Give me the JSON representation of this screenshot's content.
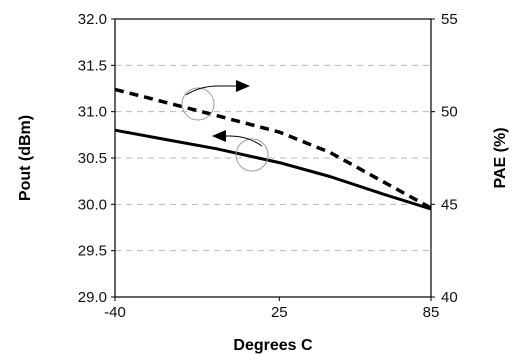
{
  "chart_data": {
    "type": "line",
    "xlabel": "Degrees C",
    "ylabel": "Pout (dBm)",
    "y2label": "PAE (%)",
    "x_ticks": [
      -40,
      25,
      85
    ],
    "x_tick_labels": [
      "-40",
      "25",
      "85"
    ],
    "xlim": [
      -40,
      85
    ],
    "ylim": [
      29.0,
      32.0
    ],
    "y_ticks": [
      29.0,
      29.5,
      30.0,
      30.5,
      31.0,
      31.5,
      32.0
    ],
    "y_tick_labels": [
      "29.0",
      "29.5",
      "30.0",
      "30.5",
      "31.0",
      "31.5",
      "32.0"
    ],
    "y2lim": [
      40,
      55
    ],
    "y2_ticks": [
      40,
      45,
      50,
      55
    ],
    "y2_tick_labels": [
      "40",
      "45",
      "50",
      "55"
    ],
    "grid": true,
    "series": [
      {
        "axis": "left",
        "style": "solid",
        "color": "#000000",
        "x": [
          -40,
          -20,
          0,
          25,
          45,
          65,
          85
        ],
        "y": [
          30.8,
          30.7,
          30.6,
          30.45,
          30.3,
          30.12,
          29.95
        ]
      },
      {
        "axis": "right",
        "style": "dashed",
        "color": "#000000",
        "x": [
          -40,
          -20,
          0,
          25,
          45,
          65,
          85
        ],
        "y": [
          51.2,
          50.5,
          49.8,
          48.9,
          47.8,
          46.3,
          44.8
        ]
      }
    ]
  }
}
